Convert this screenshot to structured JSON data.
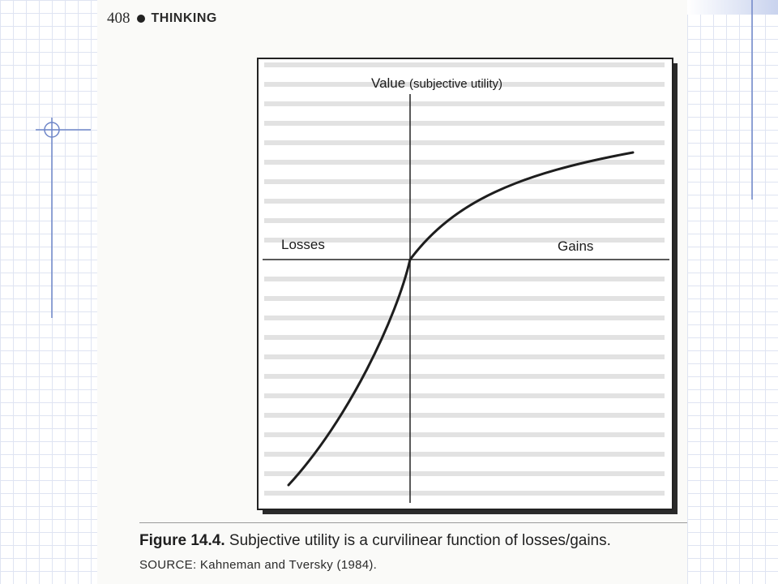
{
  "header": {
    "page_number": "408",
    "section_title": "THINKING"
  },
  "figure": {
    "y_axis_label_main": "Value",
    "y_axis_label_sub": "(subjective utility)",
    "left_label": "Losses",
    "right_label": "Gains",
    "caption_number": "Figure 14.4.",
    "caption_text": "Subjective utility is a curvilinear function of losses/gains.",
    "source": "SOURCE: Kahneman and Tversky (1984)."
  },
  "colors": {
    "background_grid": "#dfe4f2",
    "accent_blue": "#6f86c8",
    "ink": "#222222"
  }
}
